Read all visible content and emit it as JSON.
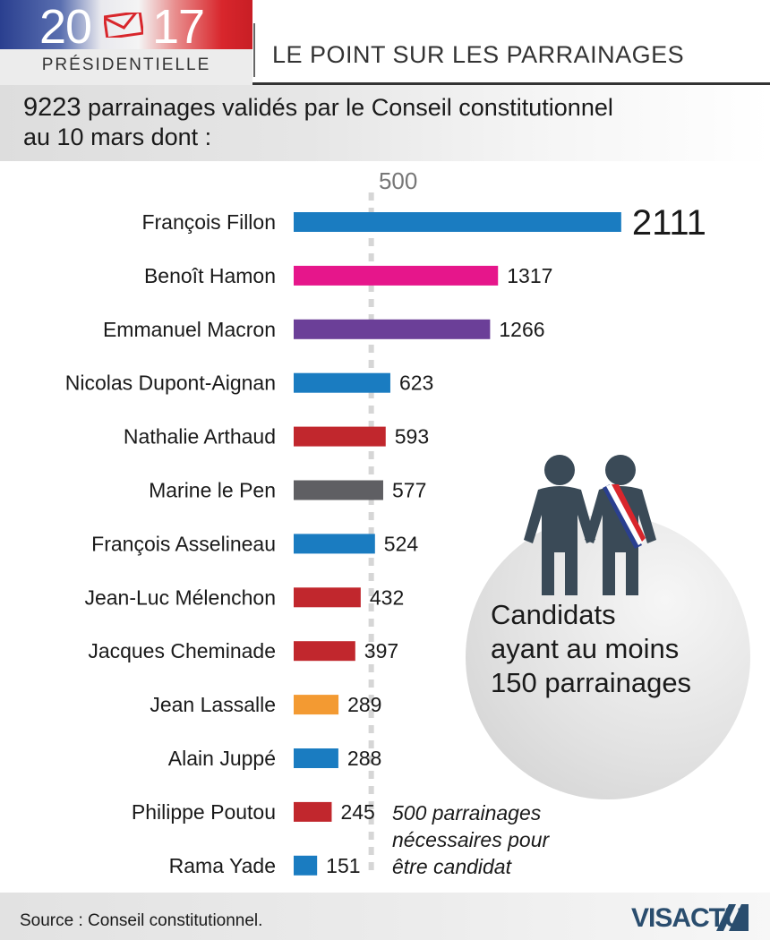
{
  "header": {
    "year_left": "20",
    "year_right": "17",
    "subtitle": "PRÉSIDENTIELLE",
    "title": "LE POINT SUR LES PARRAINAGES"
  },
  "intro": {
    "number": "9223",
    "line1_rest": " parrainages validés par le Conseil constitutionnel",
    "line2": "au 10 mars dont :"
  },
  "chart_data": {
    "type": "bar",
    "orientation": "horizontal",
    "reference_line": {
      "value": 500,
      "label": "500",
      "style": "dashed"
    },
    "categories": [
      "François Fillon",
      "Benoît Hamon",
      "Emmanuel Macron",
      "Nicolas Dupont-Aignan",
      "Nathalie Arthaud",
      "Marine le Pen",
      "François Asselineau",
      "Jean-Luc Mélenchon",
      "Jacques Cheminade",
      "Jean Lassalle",
      "Alain Juppé",
      "Philippe Poutou",
      "Rama Yade"
    ],
    "values": [
      2111,
      1317,
      1266,
      623,
      593,
      577,
      524,
      432,
      397,
      289,
      288,
      245,
      151
    ],
    "value_labels": [
      "2111",
      "1317",
      "1266",
      "623",
      "593",
      "577",
      "524",
      "432",
      "397",
      "289",
      "288",
      "245",
      "151"
    ],
    "colors": [
      "#1a7cc1",
      "#e6168b",
      "#6b3f98",
      "#1a7cc1",
      "#c1272d",
      "#c1272d",
      "#5f5f63",
      "#1a7cc1",
      "#c1272d",
      "#c1272d",
      "#f39a32",
      "#1a7cc1",
      "#c1272d"
    ],
    "colors_note": "",
    "grid": false
  },
  "colors_per_bar": [
    "#1a7cc1",
    "#e6168b",
    "#6b3f98",
    "#1a7cc1",
    "#c1272d",
    "#5f5f63",
    "#1a7cc1",
    "#c1272d",
    "#c1272d",
    "#f39a32",
    "#1a7cc1",
    "#c1272d",
    "#1a7cc1"
  ],
  "side_note": {
    "candidates_text_1": "Candidats",
    "candidates_text_2": "ayant au moins",
    "candidates_text_3": "150 parrainages",
    "threshold_line_1": "500 parrainages",
    "threshold_line_2": "nécessaires pour",
    "threshold_line_3": "être candidat"
  },
  "footer": {
    "source": "Source : Conseil constitutionnel.",
    "logo_text": "VISACTU"
  }
}
